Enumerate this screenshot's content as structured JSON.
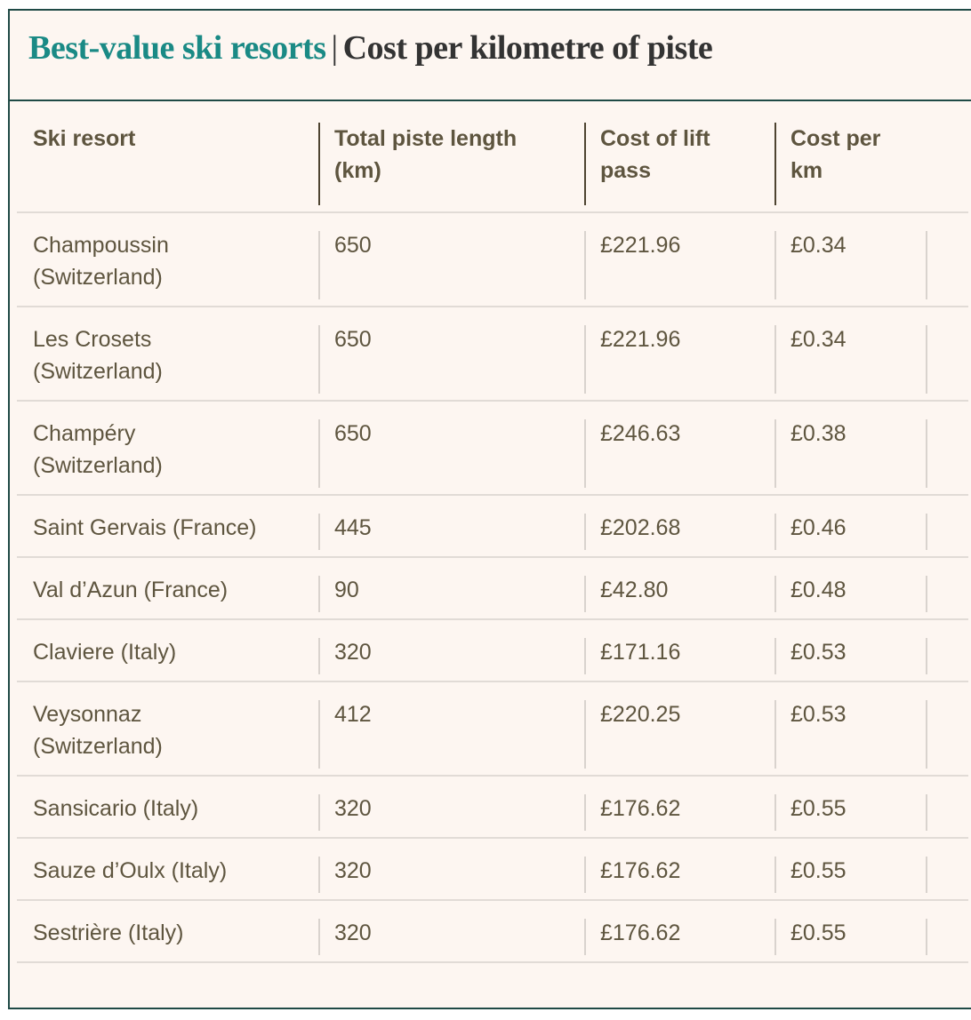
{
  "title": {
    "accent": "Best-value ski resorts",
    "separator": "|",
    "rest": "Cost per kilometre of piste"
  },
  "table": {
    "headers": {
      "resort": "Ski resort",
      "length_line1": "Total piste length",
      "length_line2": "(km)",
      "cost_line1": "Cost of lift",
      "cost_line2": "pass",
      "perkm_line1": "Cost per",
      "perkm_line2": "km"
    },
    "rows": [
      {
        "resort_line1": "Champoussin",
        "resort_line2": "(Switzerland)",
        "length": "650",
        "cost": "£221.96",
        "per_km": "£0.34"
      },
      {
        "resort_line1": "Les Crosets",
        "resort_line2": "(Switzerland)",
        "length": "650",
        "cost": "£221.96",
        "per_km": "£0.34"
      },
      {
        "resort_line1": "Champéry",
        "resort_line2": "(Switzerland)",
        "length": "650",
        "cost": "£246.63",
        "per_km": "£0.38"
      },
      {
        "resort_line1": "Saint Gervais (France)",
        "resort_line2": "",
        "length": "445",
        "cost": "£202.68",
        "per_km": "£0.46"
      },
      {
        "resort_line1": "Val d’Azun (France)",
        "resort_line2": "",
        "length": "90",
        "cost": "£42.80",
        "per_km": "£0.48"
      },
      {
        "resort_line1": "Claviere (Italy)",
        "resort_line2": "",
        "length": "320",
        "cost": "£171.16",
        "per_km": "£0.53"
      },
      {
        "resort_line1": "Veysonnaz",
        "resort_line2": "(Switzerland)",
        "length": "412",
        "cost": "£220.25",
        "per_km": "£0.53"
      },
      {
        "resort_line1": "Sansicario (Italy)",
        "resort_line2": "",
        "length": "320",
        "cost": "£176.62",
        "per_km": "£0.55"
      },
      {
        "resort_line1": "Sauze d’Oulx (Italy)",
        "resort_line2": "",
        "length": "320",
        "cost": "£176.62",
        "per_km": "£0.55"
      },
      {
        "resort_line1": "Sestrière (Italy)",
        "resort_line2": "",
        "length": "320",
        "cost": "£176.62",
        "per_km": "£0.55"
      }
    ]
  }
}
